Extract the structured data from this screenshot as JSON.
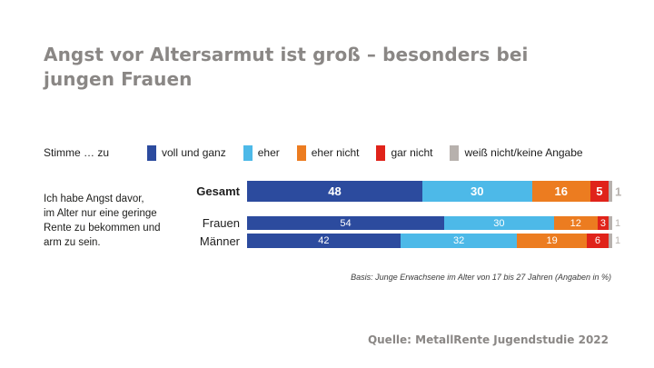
{
  "title": "Angst vor Altersarmut ist groß – besonders bei\njungen Frauen",
  "legend": {
    "prefix": "Stimme … zu",
    "items": [
      {
        "label": "voll und ganz",
        "color": "#2c4b9e"
      },
      {
        "label": "eher",
        "color": "#4db9e8"
      },
      {
        "label": "eher nicht",
        "color": "#ec7c20"
      },
      {
        "label": "gar nicht",
        "color": "#e0231a"
      },
      {
        "label": "weiß nicht/keine Angabe",
        "color": "#b7b1ad"
      }
    ]
  },
  "statement": "Ich habe Angst davor,\nim Alter nur eine geringe\nRente zu bekommen und\narm zu sein.",
  "chart_data": {
    "type": "bar",
    "orientation": "horizontal",
    "stacked": true,
    "categories": [
      "Gesamt",
      "Frauen",
      "Männer"
    ],
    "series": [
      {
        "name": "voll und ganz",
        "color": "#2c4b9e",
        "values": [
          48,
          54,
          42
        ]
      },
      {
        "name": "eher",
        "color": "#4db9e8",
        "values": [
          30,
          30,
          32
        ]
      },
      {
        "name": "eher nicht",
        "color": "#ec7c20",
        "values": [
          16,
          12,
          19
        ]
      },
      {
        "name": "gar nicht",
        "color": "#e0231a",
        "values": [
          5,
          3,
          6
        ]
      },
      {
        "name": "weiß nicht/keine Angabe",
        "color": "#b7b1ad",
        "values": [
          1,
          1,
          1
        ]
      }
    ],
    "xlim": [
      0,
      100
    ],
    "grid": false,
    "legend_position": "top",
    "value_labels": true
  },
  "basis_note": "Basis: Junge Erwachsene im Alter von 17 bis 27 Jahren (Angaben in %)",
  "source": "Quelle: MetallRente Jugendstudie 2022",
  "colors": {
    "title_gray": "#8a8785",
    "text_dark": "#1d1d1b",
    "note_gray": "#b9b3af",
    "background": "#ffffff"
  }
}
